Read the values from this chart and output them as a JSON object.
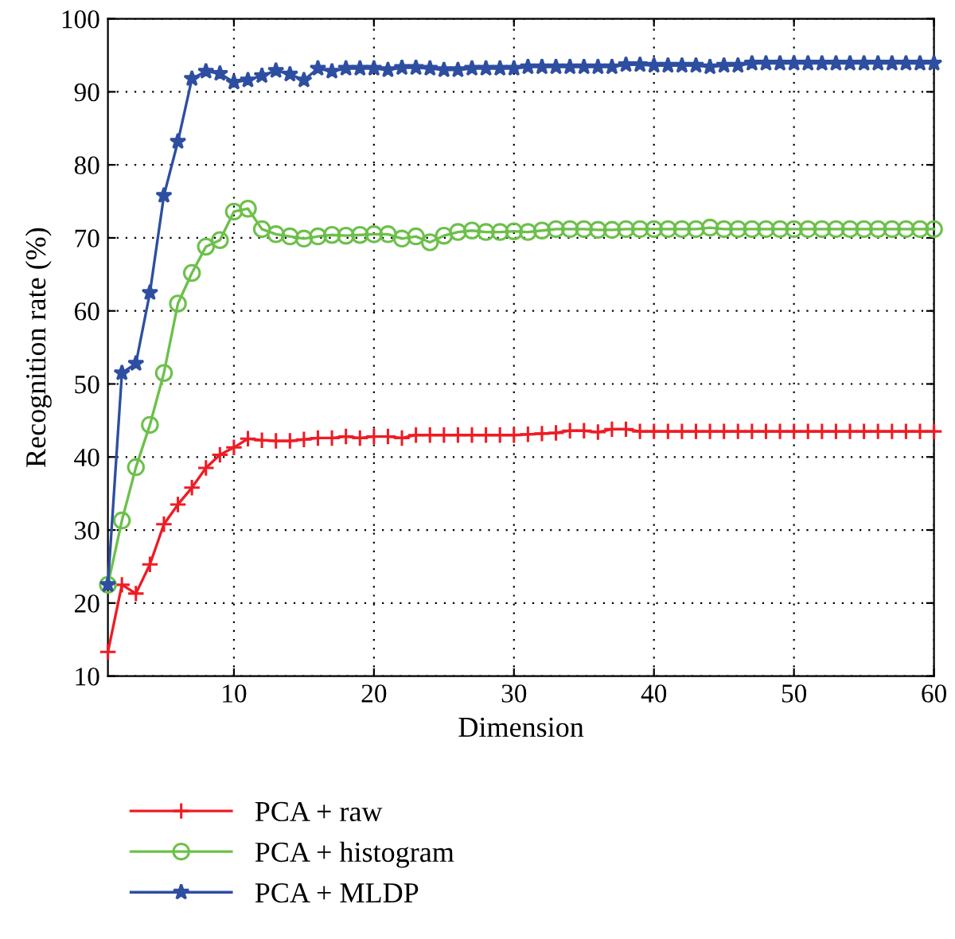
{
  "chart_data": {
    "type": "line",
    "xlabel": "Dimension",
    "ylabel": "Recognition rate (%)",
    "x": [
      1,
      2,
      3,
      4,
      5,
      6,
      7,
      8,
      9,
      10,
      11,
      12,
      13,
      14,
      15,
      16,
      17,
      18,
      19,
      20,
      21,
      22,
      23,
      24,
      25,
      26,
      27,
      28,
      29,
      30,
      31,
      32,
      33,
      34,
      35,
      36,
      37,
      38,
      39,
      40,
      41,
      42,
      43,
      44,
      45,
      46,
      47,
      48,
      49,
      50,
      51,
      52,
      53,
      54,
      55,
      56,
      57,
      58,
      59,
      60
    ],
    "series": [
      {
        "name": "PCA + raw",
        "color": "#ee1c25",
        "marker": "cross",
        "values": [
          13.3,
          22.5,
          21.3,
          25.3,
          30.8,
          33.5,
          35.8,
          38.5,
          40.3,
          41.3,
          42.5,
          42.3,
          42.2,
          42.2,
          42.4,
          42.6,
          42.6,
          42.8,
          42.6,
          42.8,
          42.8,
          42.6,
          43,
          43,
          43,
          43,
          43,
          43,
          43,
          43,
          43.1,
          43.2,
          43.3,
          43.6,
          43.6,
          43.4,
          43.8,
          43.8,
          43.5,
          43.5,
          43.5,
          43.5,
          43.5,
          43.5,
          43.5,
          43.5,
          43.5,
          43.5,
          43.5,
          43.5,
          43.5,
          43.5,
          43.5,
          43.5,
          43.5,
          43.5,
          43.5,
          43.5,
          43.5,
          43.5
        ]
      },
      {
        "name": "PCA + histogram",
        "color": "#6cc04a",
        "marker": "circle",
        "values": [
          22.5,
          31.3,
          38.6,
          44.4,
          51.5,
          61,
          65.2,
          68.8,
          69.7,
          73.6,
          74,
          71.2,
          70.5,
          70.2,
          69.9,
          70.2,
          70.4,
          70.3,
          70.4,
          70.5,
          70.5,
          69.9,
          70.2,
          69.4,
          70.3,
          70.8,
          71,
          70.8,
          70.8,
          70.9,
          70.8,
          71,
          71.2,
          71.2,
          71.2,
          71.1,
          71.1,
          71.2,
          71.2,
          71.2,
          71.2,
          71.2,
          71.2,
          71.4,
          71.2,
          71.2,
          71.2,
          71.2,
          71.2,
          71.2,
          71.2,
          71.2,
          71.2,
          71.2,
          71.2,
          71.2,
          71.2,
          71.2,
          71.2,
          71.2
        ]
      },
      {
        "name": "PCA + MLDP",
        "color": "#2e4ea1",
        "marker": "star",
        "values": [
          22.5,
          51.5,
          52.8,
          62.5,
          75.8,
          83.2,
          91.8,
          92.8,
          92.5,
          91.3,
          91.6,
          92.2,
          92.9,
          92.4,
          91.6,
          93.2,
          92.8,
          93.2,
          93.2,
          93.2,
          93,
          93.3,
          93.3,
          93.2,
          93,
          93,
          93.2,
          93.2,
          93.2,
          93.2,
          93.4,
          93.4,
          93.4,
          93.4,
          93.4,
          93.4,
          93.4,
          93.7,
          93.7,
          93.6,
          93.6,
          93.6,
          93.6,
          93.4,
          93.6,
          93.6,
          93.9,
          93.9,
          93.9,
          93.9,
          93.9,
          93.9,
          93.9,
          93.9,
          93.9,
          93.9,
          93.9,
          93.9,
          93.9,
          93.9
        ]
      }
    ],
    "xlim": [
      1,
      60
    ],
    "xticks": [
      10,
      20,
      30,
      40,
      50,
      60
    ],
    "ylim": [
      10,
      100
    ],
    "yticks": [
      10,
      20,
      30,
      40,
      50,
      60,
      70,
      80,
      90,
      100
    ],
    "grid": true,
    "legend": "bottom",
    "line_style": "solid"
  }
}
